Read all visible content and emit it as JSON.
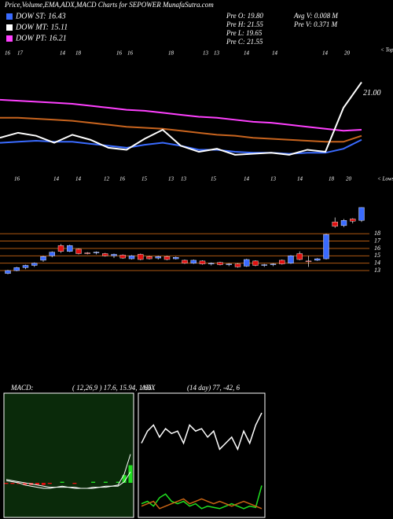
{
  "chart_data": [
    {
      "type": "line",
      "title": "Price,Volume,EMA,ADX,MACD Charts for SEPOWER MunafaSutra.com",
      "legend": [
        {
          "label": "DOW ST: 16.43",
          "color": "#3a6bff"
        },
        {
          "label": "DOW MT: 15.11",
          "color": "#ffffff"
        },
        {
          "label": "DOW PT: 16.21",
          "color": "#ff40ff"
        }
      ],
      "stats": [
        "Pre  O: 19.80",
        "Pre  H: 21.55",
        "Pre  L: 19.65",
        "Pre  C: 21.55",
        "Avg V: 0.008 M",
        "Pre   V: 0.371 M"
      ],
      "annotation": "21.00",
      "tops_label": "< Tops",
      "lows_label": "< Lows",
      "top_dates": [
        "16",
        "17",
        "14",
        "18",
        "16",
        "16",
        "18",
        "13",
        "13",
        "14",
        "14",
        "14",
        "20"
      ],
      "mid_dates": [
        "16",
        "14",
        "14",
        "12",
        "16",
        "15",
        "13",
        "13",
        "15",
        "14",
        "13",
        "14",
        "18",
        "20"
      ],
      "ylim": [
        11.3,
        28.2
      ],
      "series": [
        {
          "name": "EMA long",
          "color": "#ff40ff",
          "values": [
            19.8,
            19.7,
            19.6,
            19.5,
            19.4,
            19.2,
            19.0,
            18.8,
            18.7,
            18.5,
            18.3,
            18.1,
            18.0,
            17.8,
            17.6,
            17.5,
            17.3,
            17.1,
            16.9,
            16.7,
            16.8
          ]
        },
        {
          "name": "EMA mid",
          "color": "#c8641e",
          "values": [
            18.0,
            18.0,
            17.9,
            17.8,
            17.7,
            17.5,
            17.3,
            17.1,
            17.0,
            16.9,
            16.7,
            16.5,
            16.3,
            16.2,
            16.0,
            15.9,
            15.8,
            15.7,
            15.6,
            15.6,
            16.2
          ]
        },
        {
          "name": "EMA short",
          "color": "#3a6bff",
          "values": [
            15.5,
            15.6,
            15.7,
            15.6,
            15.6,
            15.4,
            15.2,
            15.0,
            15.3,
            15.5,
            15.2,
            14.8,
            14.8,
            14.6,
            14.5,
            14.5,
            14.4,
            14.5,
            14.5,
            14.9,
            15.8
          ]
        },
        {
          "name": "Price",
          "color": "#ffffff",
          "values": [
            16.0,
            16.5,
            16.2,
            15.5,
            16.3,
            15.8,
            15.0,
            14.8,
            15.9,
            16.8,
            15.2,
            14.6,
            14.9,
            14.3,
            14.4,
            14.5,
            14.3,
            14.8,
            14.6,
            19.0,
            21.55
          ]
        }
      ]
    },
    {
      "type": "candlestick",
      "ylim": [
        11.3,
        22.5
      ],
      "yticks": [
        13,
        14,
        15,
        16,
        17,
        18
      ],
      "grid": true,
      "up_color": "#3a6bff",
      "down_color": "#e01010",
      "grid_color": "#c86414",
      "open": [
        12.6,
        13.0,
        13.4,
        13.7,
        14.4,
        15.0,
        16.4,
        15.6,
        15.9,
        15.4,
        15.4,
        15.3,
        15.0,
        15.1,
        14.6,
        15.2,
        14.9,
        14.7,
        14.9,
        14.6,
        14.4,
        14.0,
        14.3,
        13.9,
        14.1,
        13.8,
        13.9,
        13.6,
        14.3,
        13.7,
        13.8,
        14.4,
        14.0,
        15.3,
        14.3,
        14.4,
        14.6,
        19.6,
        19.1,
        20.0,
        19.8
      ],
      "high": [
        13.1,
        13.5,
        13.8,
        14.1,
        15.0,
        15.6,
        16.6,
        16.5,
        16.0,
        15.5,
        15.6,
        15.4,
        15.3,
        15.2,
        15.1,
        15.3,
        15.0,
        15.0,
        15.0,
        14.9,
        14.5,
        14.5,
        14.4,
        14.1,
        14.2,
        14.0,
        14.0,
        14.6,
        14.4,
        13.9,
        14.0,
        14.5,
        15.1,
        15.6,
        15.0,
        14.7,
        18.0,
        20.2,
        20.0,
        20.1,
        21.6
      ],
      "low": [
        12.5,
        12.9,
        13.2,
        13.5,
        14.2,
        14.8,
        15.4,
        15.5,
        15.2,
        15.2,
        15.2,
        14.9,
        14.7,
        14.6,
        14.5,
        14.4,
        14.5,
        14.5,
        14.4,
        14.5,
        13.9,
        13.9,
        13.8,
        13.7,
        13.7,
        13.6,
        13.4,
        13.5,
        13.6,
        13.5,
        13.6,
        13.8,
        13.9,
        14.4,
        13.5,
        14.3,
        14.5,
        18.8,
        18.9,
        19.4,
        19.6
      ],
      "close": [
        13.0,
        13.4,
        13.7,
        14.0,
        14.9,
        15.5,
        15.6,
        16.4,
        15.3,
        15.3,
        15.5,
        15.0,
        15.2,
        14.7,
        15.0,
        14.5,
        14.6,
        14.9,
        14.5,
        14.8,
        14.0,
        14.4,
        13.9,
        14.0,
        13.8,
        13.9,
        13.5,
        14.5,
        13.7,
        13.8,
        13.9,
        13.9,
        15.0,
        14.5,
        14.2,
        14.6,
        17.9,
        19.0,
        19.8,
        19.7,
        21.55
      ]
    },
    {
      "type": "macd",
      "title": "MACD:",
      "subtitle": "( 12,26,9 ) 17.6,  15.94,  1.66",
      "ylim": [
        -3,
        8
      ],
      "series": [
        {
          "name": "MACD",
          "color": "#ffffff",
          "values": [
            0.2,
            0.1,
            0.0,
            -0.2,
            -0.3,
            -0.4,
            -0.5,
            -0.5,
            -0.4,
            -0.3,
            -0.4,
            -0.5,
            -0.5,
            -0.5,
            -0.4,
            -0.4,
            -0.3,
            -0.3,
            -0.2,
            0.8,
            2.6
          ]
        },
        {
          "name": "Signal",
          "color": "#ffffff",
          "values": [
            0.3,
            0.2,
            0.1,
            0.0,
            -0.1,
            -0.2,
            -0.3,
            -0.4,
            -0.4,
            -0.4,
            -0.4,
            -0.4,
            -0.5,
            -0.5,
            -0.5,
            -0.4,
            -0.4,
            -0.3,
            -0.3,
            0.1,
            1.0
          ]
        },
        {
          "name": "Histogram",
          "color": "#e01010",
          "values": [
            -0.1,
            -0.1,
            -0.1,
            -0.2,
            -0.2,
            -0.2,
            -0.2,
            -0.1,
            0.0,
            0.1,
            0.0,
            -0.1,
            0.0,
            0.0,
            0.1,
            0.0,
            0.1,
            0.0,
            0.1,
            0.7,
            1.6
          ]
        }
      ]
    },
    {
      "type": "line",
      "title": "ADX",
      "subtitle": "(14  day)  77,  -42,  6",
      "ylim": [
        0,
        100
      ],
      "series": [
        {
          "name": "ADX",
          "color": "#ffffff",
          "values": [
            60,
            70,
            75,
            65,
            72,
            68,
            70,
            60,
            75,
            70,
            72,
            65,
            70,
            55,
            60,
            65,
            55,
            70,
            60,
            75,
            85
          ]
        },
        {
          "name": "+DI",
          "color": "#20e020",
          "values": [
            10,
            12,
            8,
            15,
            18,
            12,
            10,
            12,
            8,
            10,
            6,
            8,
            7,
            6,
            8,
            10,
            8,
            6,
            8,
            7,
            25
          ]
        },
        {
          "name": "-DI",
          "color": "#c86414",
          "values": [
            8,
            10,
            12,
            6,
            8,
            10,
            12,
            14,
            10,
            12,
            14,
            12,
            10,
            12,
            10,
            8,
            10,
            12,
            10,
            8,
            6
          ]
        }
      ]
    }
  ]
}
